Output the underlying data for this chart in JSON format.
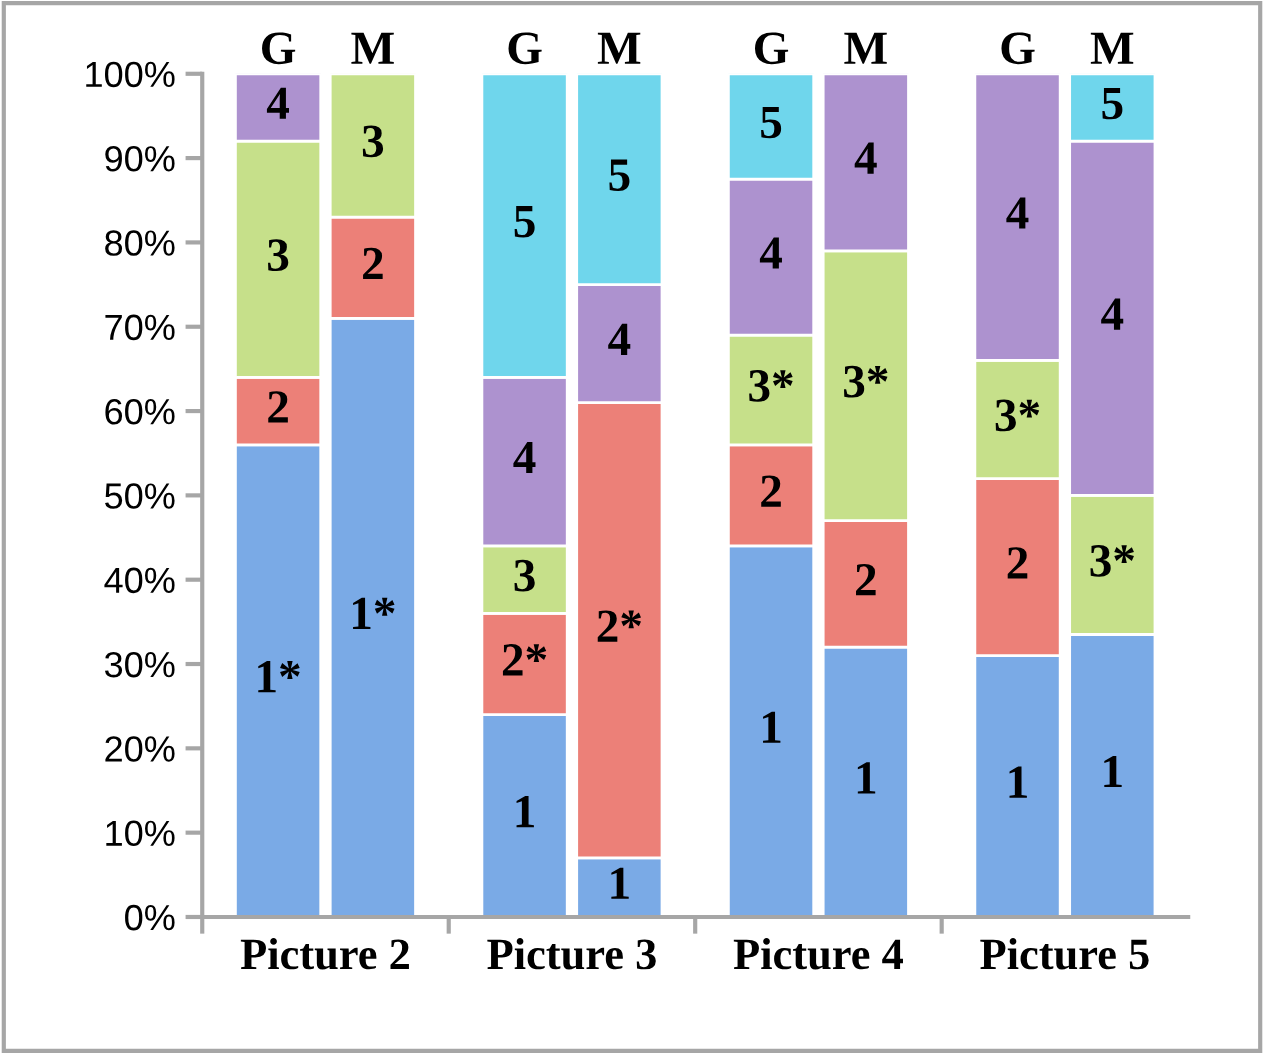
{
  "chart_data": {
    "type": "bar",
    "stacked": true,
    "categories": [
      "G",
      "M",
      "G",
      "M",
      "G",
      "M",
      "G",
      "M"
    ],
    "series": [
      {
        "name": "1",
        "color": "#7aaae6",
        "values": [
          null,
          null,
          24,
          7,
          44,
          32,
          31,
          33.5
        ]
      },
      {
        "name": "1*",
        "color": "#7aaae6",
        "values": [
          56,
          71,
          null,
          null,
          null,
          null,
          null,
          null
        ]
      },
      {
        "name": "2",
        "color": "#ec8078",
        "values": [
          8,
          12,
          null,
          null,
          12,
          15,
          21,
          null
        ]
      },
      {
        "name": "2*",
        "color": "#ec8078",
        "values": [
          null,
          null,
          12,
          54,
          null,
          null,
          null,
          null
        ]
      },
      {
        "name": "3",
        "color": "#c6e08a",
        "values": [
          28,
          17,
          8,
          null,
          null,
          null,
          null,
          null
        ]
      },
      {
        "name": "3*",
        "color": "#c6e08a",
        "values": [
          null,
          null,
          null,
          null,
          13,
          32,
          14,
          16.5
        ]
      },
      {
        "name": "4",
        "color": "#ad92cf",
        "values": [
          8,
          null,
          20,
          14,
          18.5,
          21,
          34,
          42
        ]
      },
      {
        "name": "5",
        "color": "#6fd6ec",
        "values": [
          null,
          null,
          36,
          25,
          12.5,
          null,
          null,
          8
        ]
      }
    ],
    "annotations": [
      "Picture 2",
      "Picture 3",
      "Picture 4",
      "Picture 5"
    ],
    "ylim": [
      0,
      100
    ],
    "yticks": [
      {
        "value": 0,
        "label": "0%"
      },
      {
        "value": 10,
        "label": "10%"
      },
      {
        "value": 20,
        "label": "20%"
      },
      {
        "value": 30,
        "label": "30%"
      },
      {
        "value": 40,
        "label": "40%"
      },
      {
        "value": 50,
        "label": "50%"
      },
      {
        "value": 60,
        "label": "60%"
      },
      {
        "value": 70,
        "label": "70%"
      },
      {
        "value": 80,
        "label": "80%"
      },
      {
        "value": 90,
        "label": "90%"
      },
      {
        "value": 100,
        "label": "100%"
      }
    ],
    "grid": false,
    "legend": false
  }
}
